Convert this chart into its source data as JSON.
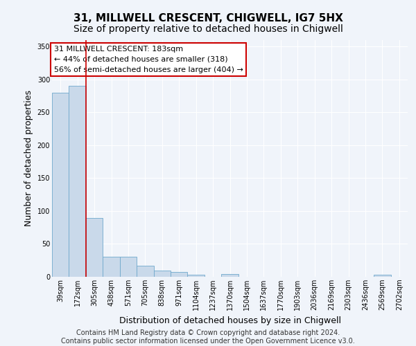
{
  "title1": "31, MILLWELL CRESCENT, CHIGWELL, IG7 5HX",
  "title2": "Size of property relative to detached houses in Chigwell",
  "xlabel": "Distribution of detached houses by size in Chigwell",
  "ylabel": "Number of detached properties",
  "bin_labels": [
    "39sqm",
    "172sqm",
    "305sqm",
    "438sqm",
    "571sqm",
    "705sqm",
    "838sqm",
    "971sqm",
    "1104sqm",
    "1237sqm",
    "1370sqm",
    "1504sqm",
    "1637sqm",
    "1770sqm",
    "1903sqm",
    "2036sqm",
    "2169sqm",
    "2303sqm",
    "2436sqm",
    "2569sqm",
    "2702sqm"
  ],
  "bar_values": [
    280,
    290,
    89,
    31,
    31,
    17,
    9,
    7,
    3,
    0,
    4,
    0,
    0,
    0,
    0,
    0,
    0,
    0,
    0,
    3,
    0
  ],
  "bar_color": "#c9d9ea",
  "bar_edge_color": "#6fa8cc",
  "vline_x": 1.5,
  "vline_color": "#cc0000",
  "annotation_text": "31 MILLWELL CRESCENT: 183sqm\n← 44% of detached houses are smaller (318)\n56% of semi-detached houses are larger (404) →",
  "annotation_box_color": "#ffffff",
  "annotation_box_edge": "#cc0000",
  "ylim": [
    0,
    360
  ],
  "yticks": [
    0,
    50,
    100,
    150,
    200,
    250,
    300,
    350
  ],
  "footer_text": "Contains HM Land Registry data © Crown copyright and database right 2024.\nContains public sector information licensed under the Open Government Licence v3.0.",
  "bg_color": "#f0f4fa",
  "plot_bg_color": "#f0f4fa",
  "grid_color": "#ffffff",
  "title1_fontsize": 11,
  "title2_fontsize": 10,
  "xlabel_fontsize": 9,
  "ylabel_fontsize": 9,
  "tick_fontsize": 7,
  "annotation_fontsize": 8,
  "footer_fontsize": 7
}
